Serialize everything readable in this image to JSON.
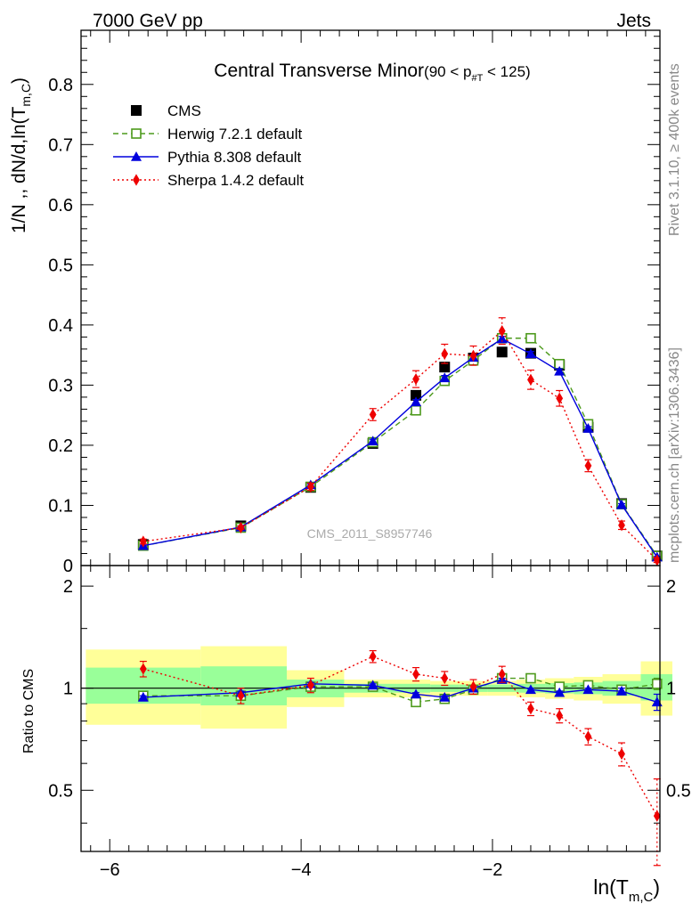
{
  "header": {
    "left": "7000 GeV pp",
    "right": "Jets"
  },
  "side_labels": {
    "rivet": "Rivet 3.1.10, ≥ 400k events",
    "mcplots": "mcplots.cern.ch [arXiv:1306.3436]"
  },
  "watermark": "CMS_2011_S8957746",
  "chart_data": [
    {
      "type": "line",
      "panel": "main",
      "title_main": "Central Transverse Minor",
      "title_cut": "(90 < p",
      "title_cut_sub": "#T",
      "title_cut_end": " < 125)",
      "ylabel": "1/N ,, dN/d,ln(T",
      "ylabel_sub": "m,C",
      "ylabel_end": ")",
      "ylim": [
        0,
        0.89
      ],
      "yticks": [
        0,
        0.1,
        0.2,
        0.3,
        0.4,
        0.5,
        0.6,
        0.7,
        0.8
      ],
      "ytick_labels": [
        "0",
        "0.1",
        "0.2",
        "0.3",
        "0.4",
        "0.5",
        "0.6",
        "0.7",
        "0.8"
      ],
      "xlim": [
        -6.3,
        -0.25
      ],
      "x": [
        -5.65,
        -4.63,
        -3.9,
        -3.25,
        -2.8,
        -2.5,
        -2.2,
        -1.9,
        -1.6,
        -1.3,
        -1.0,
        -0.65,
        -0.28
      ],
      "series": [
        {
          "name": "CMS",
          "style": "points",
          "color": "#000000",
          "marker": "square-filled",
          "values": [
            0.035,
            0.066,
            0.13,
            0.203,
            0.283,
            0.33,
            0.345,
            0.355,
            0.353,
            0.333,
            0.23,
            0.103,
            0.016
          ]
        },
        {
          "name": "Herwig 7.2.1 default",
          "style": "dashed",
          "color": "#4d9a1c",
          "marker": "square-open",
          "values": [
            0.033,
            0.063,
            0.131,
            0.205,
            0.258,
            0.307,
            0.341,
            0.378,
            0.378,
            0.335,
            0.235,
            0.102,
            0.016
          ],
          "errors": [
            0.001,
            0.001,
            0.002,
            0.003,
            0.004,
            0.004,
            0.004,
            0.004,
            0.004,
            0.004,
            0.003,
            0.002,
            0.001
          ]
        },
        {
          "name": "Pythia 8.308 default",
          "style": "solid",
          "color": "#0000dd",
          "marker": "triangle-filled",
          "values": [
            0.033,
            0.064,
            0.134,
            0.207,
            0.272,
            0.312,
            0.346,
            0.377,
            0.352,
            0.323,
            0.228,
            0.101,
            0.014
          ],
          "errors": [
            0.001,
            0.001,
            0.002,
            0.003,
            0.004,
            0.004,
            0.004,
            0.004,
            0.004,
            0.004,
            0.003,
            0.002,
            0.001
          ]
        },
        {
          "name": "Sherpa 1.4.2 default",
          "style": "dotted",
          "color": "#ee0000",
          "marker": "diamond-filled",
          "values": [
            0.04,
            0.063,
            0.131,
            0.251,
            0.31,
            0.352,
            0.349,
            0.39,
            0.309,
            0.278,
            0.166,
            0.067,
            0.009
          ],
          "errors": [
            0.004,
            0.003,
            0.006,
            0.01,
            0.014,
            0.016,
            0.016,
            0.022,
            0.016,
            0.013,
            0.01,
            0.007,
            0.004
          ]
        }
      ]
    },
    {
      "type": "line",
      "panel": "ratio",
      "ylabel": "Ratio to CMS",
      "ylim": [
        0.33,
        2.3
      ],
      "log_y": true,
      "yticks": [
        0.5,
        1,
        2
      ],
      "ytick_labels": [
        "0.5",
        "1",
        "2"
      ],
      "xlabel": "ln(T",
      "xlabel_sub": "m,C",
      "xlabel_end": ")",
      "xlim": [
        -6.3,
        -0.25
      ],
      "xticks": [
        -6,
        -4,
        -2
      ],
      "xtick_labels": [
        "−6",
        "−4",
        "−2"
      ],
      "bands": [
        {
          "x0": -6.25,
          "x1": -5.05,
          "yellow": [
            0.78,
            1.3
          ],
          "green": [
            0.9,
            1.15
          ]
        },
        {
          "x0": -5.05,
          "x1": -4.15,
          "yellow": [
            0.76,
            1.33
          ],
          "green": [
            0.89,
            1.16
          ]
        },
        {
          "x0": -4.15,
          "x1": -3.55,
          "yellow": [
            0.88,
            1.13
          ],
          "green": [
            0.94,
            1.06
          ]
        },
        {
          "x0": -3.55,
          "x1": -3.0,
          "yellow": [
            0.94,
            1.06
          ],
          "green": [
            0.97,
            1.03
          ]
        },
        {
          "x0": -3.0,
          "x1": -2.65,
          "yellow": [
            0.94,
            1.06
          ],
          "green": [
            0.97,
            1.03
          ]
        },
        {
          "x0": -2.65,
          "x1": -2.35,
          "yellow": [
            0.95,
            1.05
          ],
          "green": [
            0.975,
            1.025
          ]
        },
        {
          "x0": -2.35,
          "x1": -2.05,
          "yellow": [
            0.95,
            1.05
          ],
          "green": [
            0.975,
            1.025
          ]
        },
        {
          "x0": -2.05,
          "x1": -1.75,
          "yellow": [
            0.95,
            1.05
          ],
          "green": [
            0.975,
            1.025
          ]
        },
        {
          "x0": -1.75,
          "x1": -1.45,
          "yellow": [
            0.94,
            1.06
          ],
          "green": [
            0.97,
            1.03
          ]
        },
        {
          "x0": -1.45,
          "x1": -1.15,
          "yellow": [
            0.93,
            1.07
          ],
          "green": [
            0.965,
            1.035
          ]
        },
        {
          "x0": -1.15,
          "x1": -0.85,
          "yellow": [
            0.92,
            1.08
          ],
          "green": [
            0.96,
            1.04
          ]
        },
        {
          "x0": -0.85,
          "x1": -0.45,
          "yellow": [
            0.9,
            1.1
          ],
          "green": [
            0.95,
            1.05
          ]
        },
        {
          "x0": -0.45,
          "x1": -0.12,
          "yellow": [
            0.83,
            1.2
          ],
          "green": [
            0.92,
            1.1
          ]
        }
      ],
      "x": [
        -5.65,
        -4.63,
        -3.9,
        -3.25,
        -2.8,
        -2.5,
        -2.2,
        -1.9,
        -1.6,
        -1.3,
        -1.0,
        -0.65,
        -0.28
      ],
      "series": [
        {
          "name": "Herwig 7.2.1 default",
          "style": "dashed",
          "color": "#4d9a1c",
          "marker": "square-open",
          "values": [
            0.95,
            0.95,
            1.01,
            1.01,
            0.91,
            0.93,
            0.99,
            1.07,
            1.07,
            1.01,
            1.02,
            0.99,
            1.03
          ],
          "errors": [
            0.01,
            0.01,
            0.01,
            0.01,
            0.01,
            0.01,
            0.01,
            0.01,
            0.01,
            0.01,
            0.01,
            0.02,
            0.04
          ]
        },
        {
          "name": "Pythia 8.308 default",
          "style": "solid",
          "color": "#0000dd",
          "marker": "triangle-filled",
          "values": [
            0.94,
            0.97,
            1.03,
            1.02,
            0.96,
            0.94,
            1.0,
            1.06,
            0.99,
            0.97,
            0.99,
            0.98,
            0.91
          ],
          "errors": [
            0.01,
            0.01,
            0.01,
            0.01,
            0.01,
            0.01,
            0.01,
            0.01,
            0.01,
            0.01,
            0.01,
            0.02,
            0.05
          ]
        },
        {
          "name": "Sherpa 1.4.2 default",
          "style": "dotted",
          "color": "#ee0000",
          "marker": "diamond-filled",
          "values": [
            1.14,
            0.95,
            1.02,
            1.24,
            1.1,
            1.07,
            1.01,
            1.1,
            0.87,
            0.83,
            0.72,
            0.64,
            0.42
          ],
          "errors": [
            0.06,
            0.05,
            0.05,
            0.05,
            0.05,
            0.05,
            0.05,
            0.06,
            0.04,
            0.04,
            0.04,
            0.05,
            0.12
          ]
        }
      ]
    }
  ],
  "colors": {
    "band_yellow": "#ffff99",
    "band_green": "#99ff99",
    "side_text": "#888888"
  }
}
